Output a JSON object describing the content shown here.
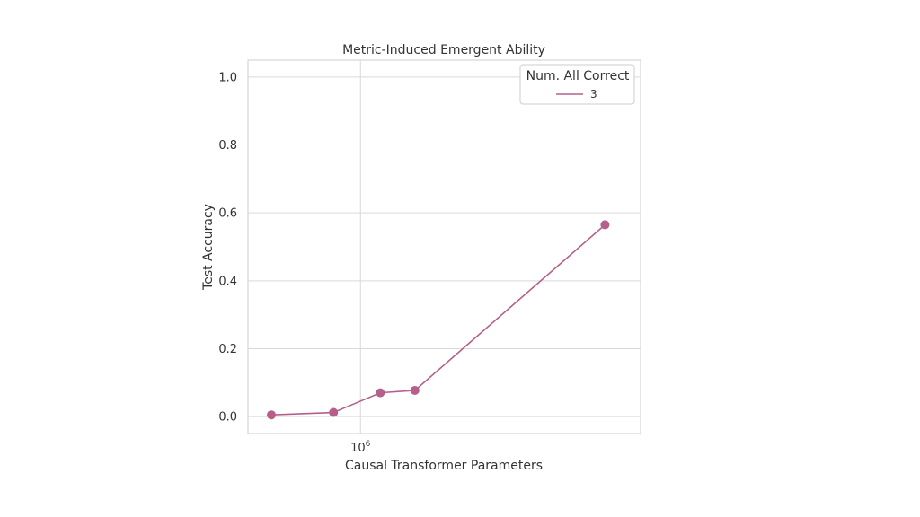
{
  "chart_data": {
    "type": "line",
    "title": "Metric-Induced Emergent Ability",
    "xlabel": "Causal Transformer Parameters",
    "ylabel": "Test Accuracy",
    "x_scale": "log",
    "x_tick_major": {
      "base": "10",
      "exponent": "6"
    },
    "ylim": [
      -0.05,
      1.05
    ],
    "y_ticks": [
      "0.0",
      "0.2",
      "0.4",
      "0.6",
      "0.8",
      "1.0"
    ],
    "grid": true,
    "legend": {
      "title": "Num. All Correct",
      "placement": "top-right"
    },
    "series": [
      {
        "name": "3",
        "color": "#b5608a",
        "points": [
          {
            "x": 440000,
            "y": 0.005
          },
          {
            "x": 780000,
            "y": 0.012
          },
          {
            "x": 1200000,
            "y": 0.07
          },
          {
            "x": 1650000,
            "y": 0.077
          },
          {
            "x": 9500000,
            "y": 0.565
          }
        ]
      }
    ]
  }
}
